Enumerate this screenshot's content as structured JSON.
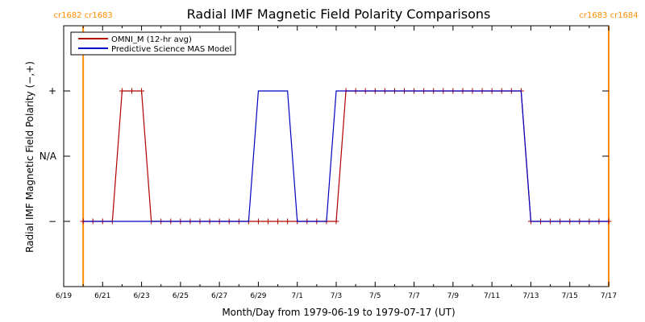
{
  "chart_data": {
    "type": "line",
    "title": "Radial IMF Magnetic Field Polarity Comparisons",
    "xlabel": "Month/Day from 1979-06-19 to 1979-07-17 (UT)",
    "ylabel": "Radial IMF Magnetic Field Polarity (−,+)",
    "x_tick_labels": [
      "6/19",
      "6/21",
      "6/23",
      "6/25",
      "6/27",
      "6/29",
      "7/1",
      "7/3",
      "7/5",
      "7/7",
      "7/9",
      "7/11",
      "7/13",
      "7/15",
      "7/17"
    ],
    "y_tick_labels": [
      "−",
      "N/A",
      "+"
    ],
    "y_tick_values": [
      -1,
      0,
      1
    ],
    "ylim": [
      -2,
      2
    ],
    "xlim": [
      "1979-06-19",
      "1979-07-17"
    ],
    "carrington_markers": [
      {
        "date": "1979-06-20",
        "label": "cr1682 cr1683",
        "color": "#ff8c00"
      },
      {
        "date": "1979-07-17",
        "label": "cr1683 cr1684",
        "color": "#ff8c00"
      }
    ],
    "legend_position": "top-left",
    "series": [
      {
        "name": "OMNI_M (12-hr avg)",
        "color": "#b00000",
        "markers": "plus",
        "x": [
          "1979-06-20",
          "1979-06-20 12:00",
          "1979-06-21",
          "1979-06-21 12:00",
          "1979-06-22",
          "1979-06-22 12:00",
          "1979-06-23",
          "1979-06-23 12:00",
          "1979-06-24",
          "1979-06-24 12:00",
          "1979-06-25",
          "1979-06-25 12:00",
          "1979-06-26",
          "1979-06-26 12:00",
          "1979-06-27",
          "1979-06-27 12:00",
          "1979-06-28",
          "1979-06-28 12:00",
          "1979-06-29",
          "1979-06-29 12:00",
          "1979-06-30",
          "1979-06-30 12:00",
          "1979-07-01",
          "1979-07-01 12:00",
          "1979-07-02",
          "1979-07-02 12:00",
          "1979-07-03",
          "1979-07-03 12:00",
          "1979-07-04",
          "1979-07-04 12:00",
          "1979-07-05",
          "1979-07-05 12:00",
          "1979-07-06",
          "1979-07-06 12:00",
          "1979-07-07",
          "1979-07-07 12:00",
          "1979-07-08",
          "1979-07-08 12:00",
          "1979-07-09",
          "1979-07-09 12:00",
          "1979-07-10",
          "1979-07-10 12:00",
          "1979-07-11",
          "1979-07-11 12:00",
          "1979-07-12",
          "1979-07-12 12:00",
          "1979-07-13",
          "1979-07-13 12:00",
          "1979-07-14",
          "1979-07-14 12:00",
          "1979-07-15",
          "1979-07-15 12:00",
          "1979-07-16",
          "1979-07-16 12:00",
          "1979-07-17"
        ],
        "y": [
          -1,
          -1,
          -1,
          -1,
          1,
          1,
          1,
          -1,
          -1,
          -1,
          -1,
          -1,
          -1,
          -1,
          -1,
          -1,
          -1,
          -1,
          -1,
          -1,
          -1,
          -1,
          -1,
          -1,
          -1,
          -1,
          -1,
          1,
          1,
          1,
          1,
          1,
          1,
          1,
          1,
          1,
          1,
          1,
          1,
          1,
          1,
          1,
          1,
          1,
          1,
          1,
          -1,
          -1,
          -1,
          -1,
          -1,
          -1,
          -1,
          -1,
          -1
        ]
      },
      {
        "name": "Predictive Science MAS Model",
        "color": "#0000c8",
        "markers": "none",
        "x": [
          "1979-06-20",
          "1979-06-28 12:00",
          "1979-06-29",
          "1979-06-30 12:00",
          "1979-07-01",
          "1979-07-02 12:00",
          "1979-07-03",
          "1979-07-12 12:00",
          "1979-07-13",
          "1979-07-17"
        ],
        "y": [
          -1,
          -1,
          1,
          1,
          -1,
          -1,
          1,
          1,
          -1,
          -1
        ]
      }
    ]
  }
}
